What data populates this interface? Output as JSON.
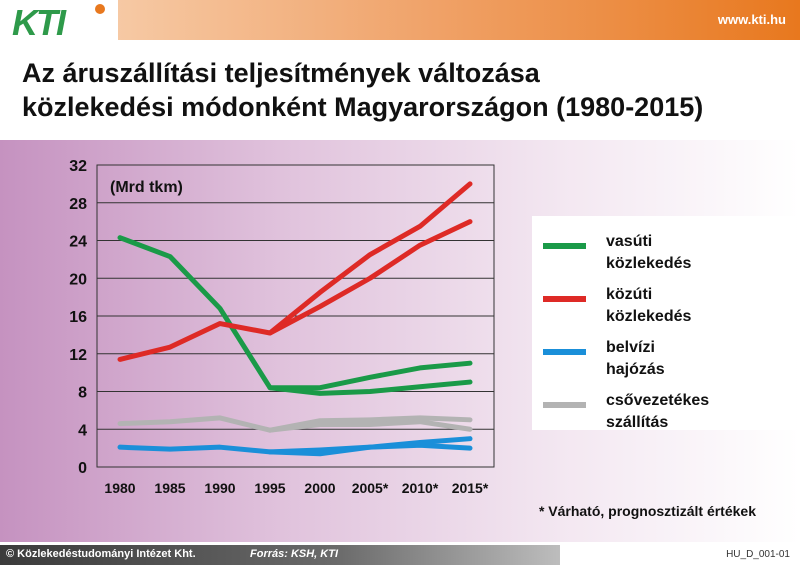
{
  "header": {
    "logo_text": "KTI",
    "url": "www.kti.hu"
  },
  "title_line1": "Az áruszállítási teljesítmények változása",
  "title_line2": "közlekedési módonként Magyarországon (1980-2015)",
  "footnote": "* Várható, prognosztizált értékek",
  "footer": {
    "copyright": "© Közlekedéstudományi Intézet Kht.",
    "source": "Forrás: KSH, KTI",
    "code": "HU_D_001-01"
  },
  "colors": {
    "rail": "#1a9a48",
    "road": "#de2a26",
    "inland_water": "#1a8fd9",
    "pipeline": "#b3b3b3",
    "accent": "#e8781e"
  },
  "chart_data": {
    "type": "line",
    "unit_label": "(Mrd tkm)",
    "categories": [
      "1980",
      "1985",
      "1990",
      "1995",
      "2000",
      "2005*",
      "2010*",
      "2015*"
    ],
    "ylim": [
      0,
      32
    ],
    "yticks": [
      0,
      4,
      8,
      12,
      16,
      20,
      24,
      28,
      32
    ],
    "grid": true,
    "legend_position": "right",
    "series": [
      {
        "key": "rail",
        "name_line1": "vasúti",
        "name_line2": "közlekedés",
        "color": "#1a9a48",
        "values": [
          24.3,
          22.3,
          16.8,
          8.4,
          7.8,
          8.0,
          8.5,
          9.0
        ],
        "values_alt": [
          null,
          null,
          null,
          8.4,
          8.4,
          9.5,
          10.5,
          11.0
        ]
      },
      {
        "key": "road",
        "name_line1": "közúti",
        "name_line2": "közlekedés",
        "color": "#de2a26",
        "values": [
          11.4,
          12.7,
          15.2,
          14.2,
          17.0,
          20.0,
          23.5,
          26.0
        ],
        "values_alt": [
          null,
          null,
          null,
          14.2,
          18.5,
          22.5,
          25.5,
          30.0
        ]
      },
      {
        "key": "inland_water",
        "name_line1": "belvízi",
        "name_line2": "hajózás",
        "color": "#1a8fd9",
        "values": [
          2.1,
          1.9,
          2.1,
          1.6,
          1.8,
          2.1,
          2.3,
          2.0
        ],
        "values_alt": [
          null,
          null,
          null,
          1.6,
          1.4,
          2.1,
          2.6,
          3.0
        ]
      },
      {
        "key": "pipeline",
        "name_line1": "csővezetékes",
        "name_line2": "szállítás",
        "color": "#b3b3b3",
        "values": [
          4.6,
          4.8,
          5.2,
          3.9,
          4.9,
          5.0,
          5.2,
          5.0
        ],
        "values_alt": [
          null,
          null,
          null,
          3.9,
          4.5,
          4.5,
          4.8,
          4.0
        ]
      }
    ]
  }
}
